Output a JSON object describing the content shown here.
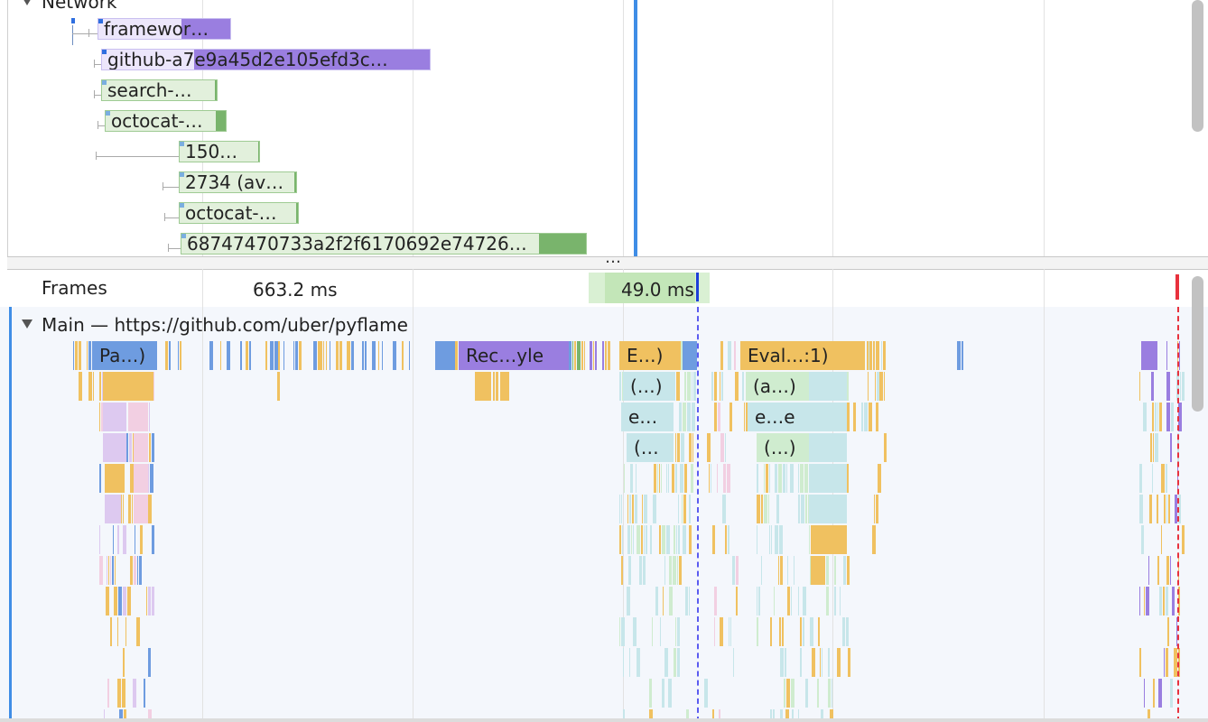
{
  "network": {
    "title": "Network",
    "requests": [
      {
        "label": "framewor…"
      },
      {
        "label": "github-a7e9a45d2e105efd3c…"
      },
      {
        "label": "search-…"
      },
      {
        "label": "octocat-…"
      },
      {
        "label": "150…"
      },
      {
        "label": "2734 (av…"
      },
      {
        "label": "octocat-…"
      },
      {
        "label": "68747470733a2f2f6170692e74726…"
      }
    ]
  },
  "divider": {
    "label": "…"
  },
  "frames": {
    "title": "Frames",
    "frame1": "663.2 ms",
    "frame2": "49.0 ms"
  },
  "main": {
    "title": "Main — https://github.com/uber/pyflame",
    "blocks": [
      {
        "label": "Pa…)"
      },
      {
        "label": "Rec…yle"
      },
      {
        "label": "E…)"
      },
      {
        "label": "Eval…:1)"
      },
      {
        "label": "(…)"
      },
      {
        "label": "(a…)"
      },
      {
        "label": "e…"
      },
      {
        "label": "e…e"
      },
      {
        "label": "(…"
      },
      {
        "label": "(…)"
      }
    ]
  },
  "colors": {
    "scripting": "#f0c160",
    "rendering": "#9a7ee0",
    "rendering_light": "#ddd4f7",
    "loading": "#6e9ce0",
    "painting": "#79b46c",
    "painting_light": "#e2f0dc",
    "teal": "#c7e6ea",
    "mint": "#cfeccf",
    "pink": "#f2cfe2",
    "lavender": "#ddc9f0",
    "grid": "#e2e2e2",
    "marker_blue": "#3f8de6"
  }
}
